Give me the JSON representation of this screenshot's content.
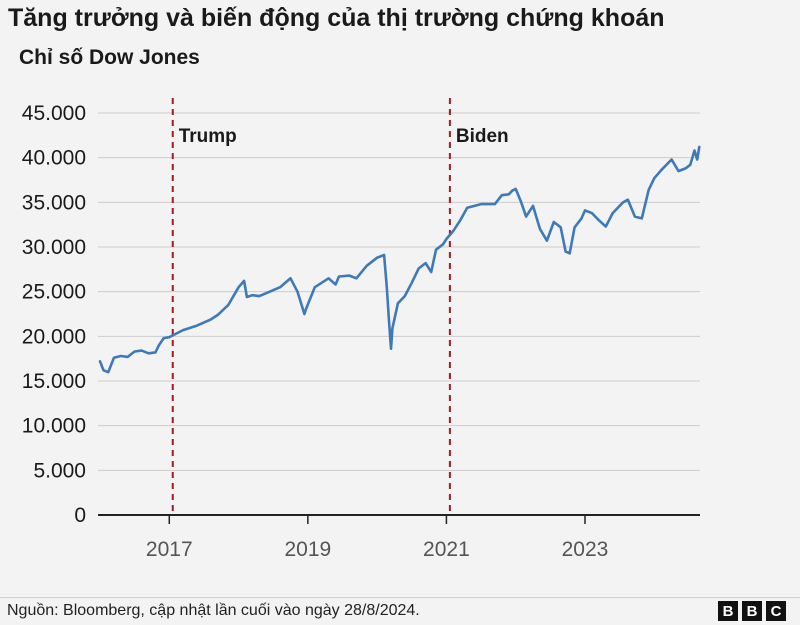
{
  "header": {
    "title": "Tăng trưởng và biến động của thị trường chứng khoán",
    "subtitle": "Chỉ số Dow Jones"
  },
  "footer": {
    "source": "Nguồn: Bloomberg, cập nhật lần cuối vào ngày 28/8/2024.",
    "logo_letters": [
      "B",
      "B",
      "C"
    ]
  },
  "colors": {
    "line": "#3f7ab8",
    "marker": "#a51c1c",
    "grid": "#cccccc",
    "axis": "#222222",
    "tick_text": "#555555",
    "y_tick_text": "#1a1a1a"
  },
  "chart_data": {
    "type": "line",
    "title": "Tăng trưởng và biến động của thị trường chứng khoán",
    "subtitle": "Chỉ số Dow Jones",
    "xlabel": "",
    "ylabel": "",
    "xlim": [
      2016.0,
      2024.66
    ],
    "ylim": [
      0,
      45000
    ],
    "grid": true,
    "y_ticks": [
      0,
      5000,
      10000,
      15000,
      20000,
      25000,
      30000,
      35000,
      40000,
      45000
    ],
    "y_tick_labels": [
      "0",
      "5.000",
      "10.000",
      "15.000",
      "20.000",
      "25.000",
      "30.000",
      "35.000",
      "40.000",
      "45.000"
    ],
    "x_ticks": [
      2017,
      2019,
      2021,
      2023
    ],
    "x_tick_labels": [
      "2017",
      "2019",
      "2021",
      "2023"
    ],
    "annotations": [
      {
        "label": "Trump",
        "x": 2017.05
      },
      {
        "label": "Biden",
        "x": 2021.05
      }
    ],
    "series": [
      {
        "x": [
          2016.0,
          2016.05,
          2016.12,
          2016.2,
          2016.3,
          2016.4,
          2016.5,
          2016.6,
          2016.7,
          2016.8,
          2016.85,
          2016.92,
          2017.0,
          2017.05,
          2017.2,
          2017.4,
          2017.6,
          2017.7,
          2017.85,
          2018.0,
          2018.08,
          2018.12,
          2018.2,
          2018.3,
          2018.45,
          2018.6,
          2018.75,
          2018.85,
          2018.95,
          2018.98,
          2019.1,
          2019.3,
          2019.4,
          2019.45,
          2019.6,
          2019.7,
          2019.85,
          2020.0,
          2020.1,
          2020.14,
          2020.17,
          2020.2,
          2020.22,
          2020.3,
          2020.4,
          2020.5,
          2020.6,
          2020.7,
          2020.78,
          2020.85,
          2020.95,
          2021.0,
          2021.1,
          2021.2,
          2021.3,
          2021.5,
          2021.7,
          2021.8,
          2021.9,
          2021.95,
          2022.0,
          2022.08,
          2022.15,
          2022.25,
          2022.35,
          2022.45,
          2022.55,
          2022.65,
          2022.72,
          2022.78,
          2022.85,
          2022.95,
          2023.0,
          2023.1,
          2023.2,
          2023.3,
          2023.4,
          2023.55,
          2023.62,
          2023.72,
          2023.82,
          2023.92,
          2024.0,
          2024.1,
          2024.25,
          2024.35,
          2024.45,
          2024.52,
          2024.58,
          2024.62,
          2024.65
        ],
        "y": [
          17200,
          16200,
          16000,
          17600,
          17800,
          17700,
          18300,
          18400,
          18100,
          18200,
          19000,
          19800,
          19900,
          20100,
          20700,
          21200,
          21900,
          22400,
          23500,
          25500,
          26200,
          24400,
          24600,
          24500,
          25000,
          25500,
          26500,
          25000,
          22500,
          23200,
          25500,
          26500,
          25800,
          26700,
          26800,
          26500,
          27900,
          28800,
          29100,
          25500,
          21900,
          18600,
          20900,
          23700,
          24500,
          26000,
          27600,
          28200,
          27200,
          29700,
          30300,
          30900,
          31800,
          33000,
          34400,
          34800,
          34800,
          35800,
          35900,
          36300,
          36500,
          35000,
          33400,
          34600,
          32000,
          30700,
          32800,
          32200,
          29500,
          29300,
          32200,
          33200,
          34100,
          33800,
          33000,
          32300,
          33800,
          35000,
          35300,
          33400,
          33200,
          36400,
          37700,
          38600,
          39800,
          38500,
          38800,
          39200,
          40800,
          39800,
          41200
        ]
      }
    ]
  }
}
